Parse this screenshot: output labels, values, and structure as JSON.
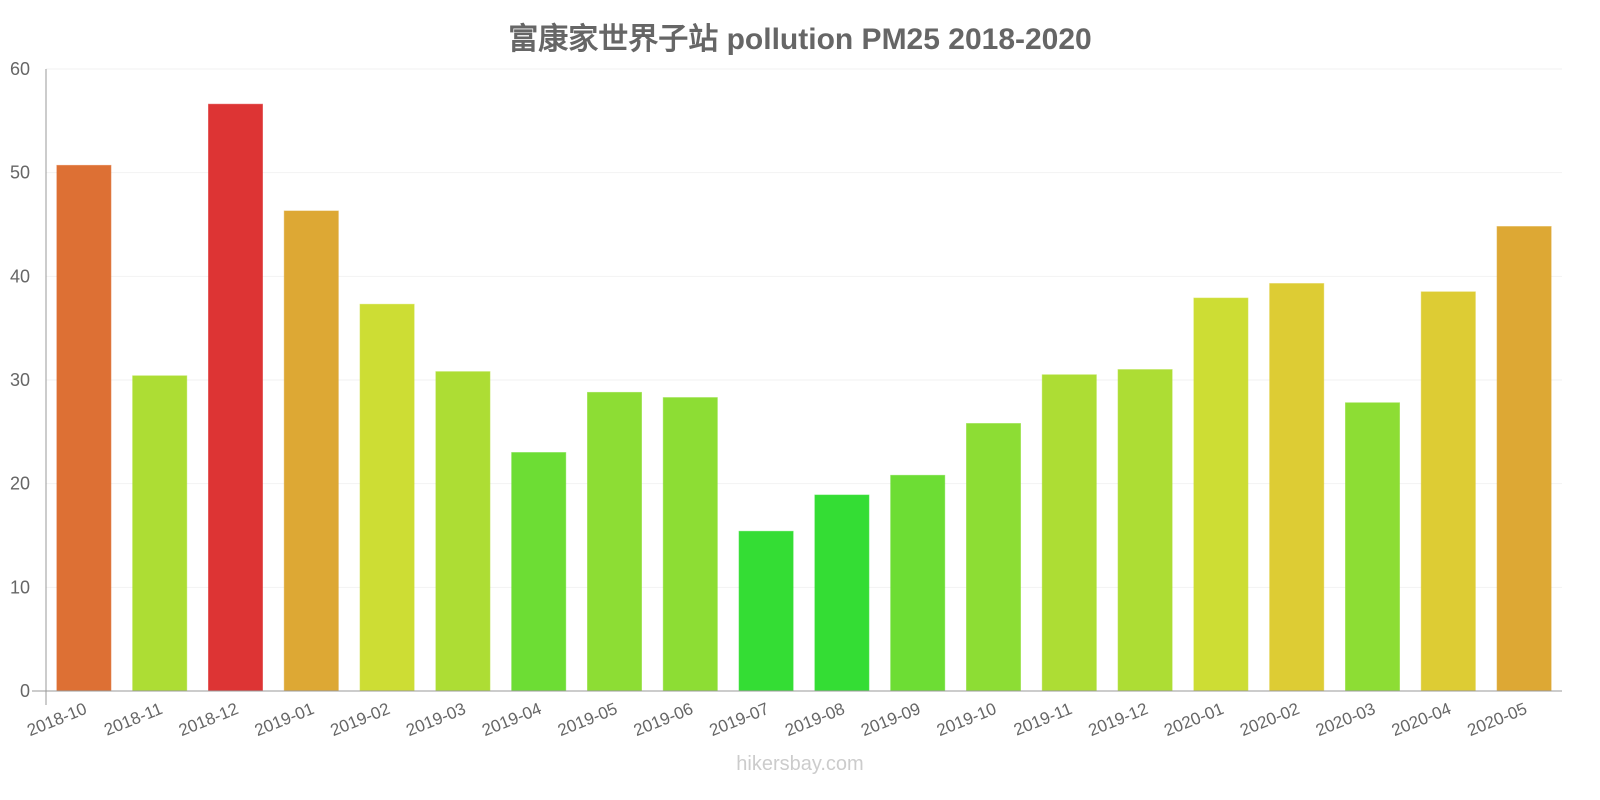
{
  "title": "富康家世界子站 pollution PM25 2018-2020",
  "watermark": "hikersbay.com",
  "chart_data": {
    "type": "bar",
    "title": "富康家世界子站 pollution PM25 2018-2020",
    "xlabel": "",
    "ylabel": "",
    "ylim": [
      0,
      60
    ],
    "yticks": [
      0,
      10,
      20,
      30,
      40,
      50,
      60
    ],
    "grid": true,
    "legend": null,
    "categories": [
      "2018-10",
      "2018-11",
      "2018-12",
      "2019-01",
      "2019-02",
      "2019-03",
      "2019-04",
      "2019-05",
      "2019-06",
      "2019-07",
      "2019-08",
      "2019-09",
      "2019-10",
      "2019-11",
      "2019-12",
      "2020-01",
      "2020-02",
      "2020-03",
      "2020-04",
      "2020-05"
    ],
    "values": [
      50.7,
      30.4,
      56.6,
      46.3,
      37.3,
      30.8,
      23.0,
      28.8,
      28.3,
      15.4,
      18.9,
      20.8,
      25.8,
      30.5,
      31.0,
      37.9,
      39.3,
      27.8,
      38.5,
      44.8
    ],
    "colors": [
      "#dd7034",
      "#addd34",
      "#dd3434",
      "#dda834",
      "#cddd34",
      "#addd34",
      "#6ddd34",
      "#8ddd34",
      "#8ddd34",
      "#34dd34",
      "#34dd34",
      "#6ddd34",
      "#8ddd34",
      "#addd34",
      "#addd34",
      "#cddd34",
      "#ddcc34",
      "#8ddd34",
      "#ddcc34",
      "#dda834"
    ]
  }
}
